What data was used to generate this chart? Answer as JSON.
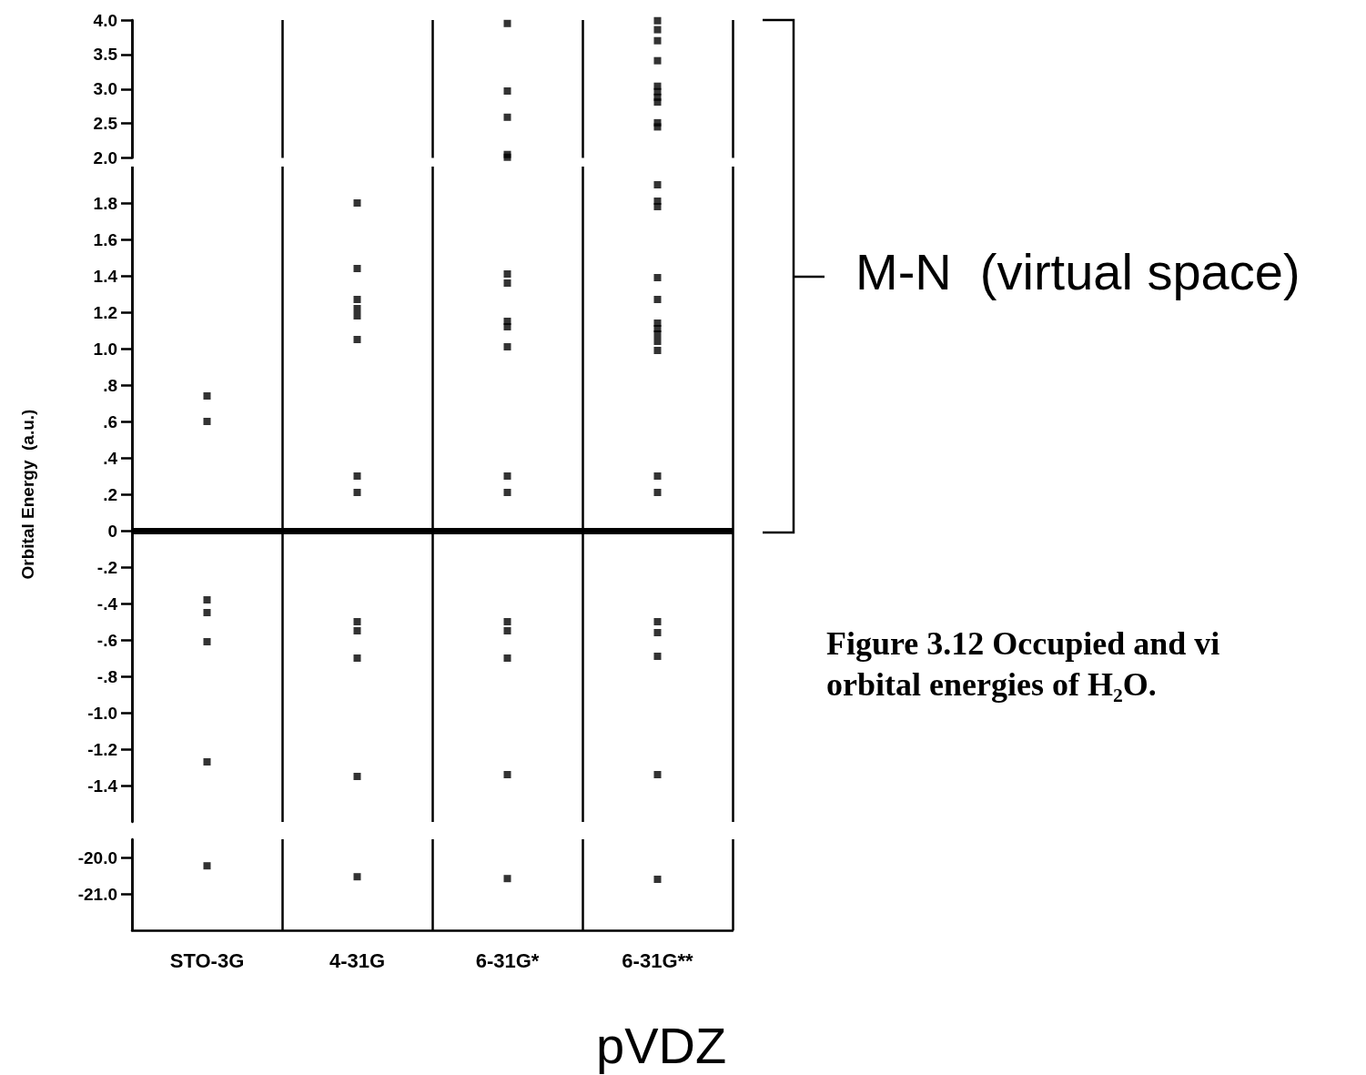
{
  "chart_data": [
    {
      "type": "scatter",
      "marker": "square",
      "categories": [
        "STO-3G",
        "4-31G",
        "6-31G*",
        "6-31G**"
      ],
      "ylim": [
        2.0,
        4.0
      ],
      "yticks": [
        {
          "value": 2.0,
          "label": "2.0"
        },
        2.5,
        {
          "value": 3.0,
          "label": "3.0"
        },
        3.5,
        {
          "value": 4.0,
          "label": "4.0"
        }
      ],
      "tick_labels": "y",
      "grid": "x",
      "series": [
        {
          "color": "#000000",
          "x": [
            "6-31G*",
            "6-31G*",
            "6-31G*",
            "6-31G*",
            "6-31G*"
          ],
          "values": [
            3.95,
            2.97,
            2.59,
            2.05,
            2.01
          ]
        },
        {
          "color": "#000000",
          "x": [
            "6-31G**",
            "6-31G**",
            "6-31G**",
            "6-31G**",
            "6-31G**",
            "6-31G**",
            "6-31G**",
            "6-31G**",
            "6-31G**",
            "6-31G**"
          ],
          "values": [
            3.99,
            3.86,
            3.7,
            3.41,
            3.04,
            2.96,
            2.88,
            2.81,
            2.51,
            2.45
          ]
        }
      ]
    },
    {
      "type": "scatter",
      "marker": "square",
      "categories": [
        "STO-3G",
        "4-31G",
        "6-31G*",
        "6-31G**"
      ],
      "ylabel": "Orbital Energy  (a.u.)",
      "ylim": [
        -1.6,
        2.0
      ],
      "yticks": [
        1.8,
        1.6,
        1.4,
        1.2,
        {
          "value": 1.0,
          "label": "1.0"
        },
        {
          "value": 0.8,
          "label": ".8"
        },
        {
          "value": 0.6,
          "label": ".6"
        },
        {
          "value": 0.4,
          "label": ".4"
        },
        {
          "value": 0.2,
          "label": ".2"
        },
        0,
        {
          "value": -0.2,
          "label": "-.2"
        },
        {
          "value": -0.4,
          "label": "-.4"
        },
        {
          "value": -0.6,
          "label": "-.6"
        },
        {
          "value": -0.8,
          "label": "-.8"
        },
        {
          "value": -1.0,
          "label": "-1.0"
        },
        -1.2,
        -1.4
      ],
      "tick_labels": "y",
      "grid": "x",
      "ref_lines": [
        {
          "axis": "y",
          "value": 0,
          "color": "#000000"
        }
      ],
      "annotations": [
        "M-N  (virtual space)",
        "Figure 3.12 Occupied and vi\norbital energies of H₂O.",
        "pVDZ"
      ],
      "series": [
        {
          "color": "#000000",
          "x": [
            "STO-3G",
            "STO-3G",
            "STO-3G",
            "STO-3G",
            "STO-3G",
            "STO-3G"
          ],
          "values": [
            0.74,
            0.6,
            -0.38,
            -0.45,
            -0.61,
            -1.27
          ]
        },
        {
          "color": "#000000",
          "x": [
            "4-31G",
            "4-31G",
            "4-31G",
            "4-31G",
            "4-31G",
            "4-31G",
            "4-31G",
            "4-31G",
            "4-31G",
            "4-31G",
            "4-31G",
            "4-31G"
          ],
          "values": [
            1.8,
            1.44,
            1.27,
            1.22,
            1.18,
            1.05,
            0.3,
            0.21,
            -0.5,
            -0.55,
            -0.7,
            -1.35
          ]
        },
        {
          "color": "#000000",
          "x": [
            "6-31G*",
            "6-31G*",
            "6-31G*",
            "6-31G*",
            "6-31G*",
            "6-31G*",
            "6-31G*",
            "6-31G*",
            "6-31G*",
            "6-31G*",
            "6-31G*"
          ],
          "values": [
            1.41,
            1.36,
            1.15,
            1.12,
            1.01,
            0.3,
            0.21,
            -0.5,
            -0.55,
            -0.7,
            -1.34
          ]
        },
        {
          "color": "#000000",
          "x": [
            "6-31G**",
            "6-31G**",
            "6-31G**",
            "6-31G**",
            "6-31G**",
            "6-31G**",
            "6-31G**",
            "6-31G**",
            "6-31G**",
            "6-31G**",
            "6-31G**",
            "6-31G**",
            "6-31G**",
            "6-31G**",
            "6-31G**",
            "6-31G**"
          ],
          "values": [
            1.9,
            1.81,
            1.78,
            1.39,
            1.27,
            1.14,
            1.11,
            1.08,
            1.04,
            0.99,
            0.3,
            0.21,
            -0.5,
            -0.56,
            -0.69,
            -1.34
          ]
        }
      ]
    },
    {
      "type": "scatter",
      "marker": "square",
      "categories": [
        "STO-3G",
        "4-31G",
        "6-31G*",
        "6-31G**"
      ],
      "ylim": [
        -22.0,
        -19.5
      ],
      "yticks": [
        {
          "value": -20.0,
          "label": "-20.0"
        },
        {
          "value": -21.0,
          "label": "-21.0"
        }
      ],
      "grid": "x",
      "series": [
        {
          "color": "#000000",
          "x": [
            "STO-3G",
            "4-31G",
            "6-31G*",
            "6-31G**"
          ],
          "values": [
            -20.23,
            -20.53,
            -20.58,
            -20.6
          ]
        }
      ]
    }
  ]
}
